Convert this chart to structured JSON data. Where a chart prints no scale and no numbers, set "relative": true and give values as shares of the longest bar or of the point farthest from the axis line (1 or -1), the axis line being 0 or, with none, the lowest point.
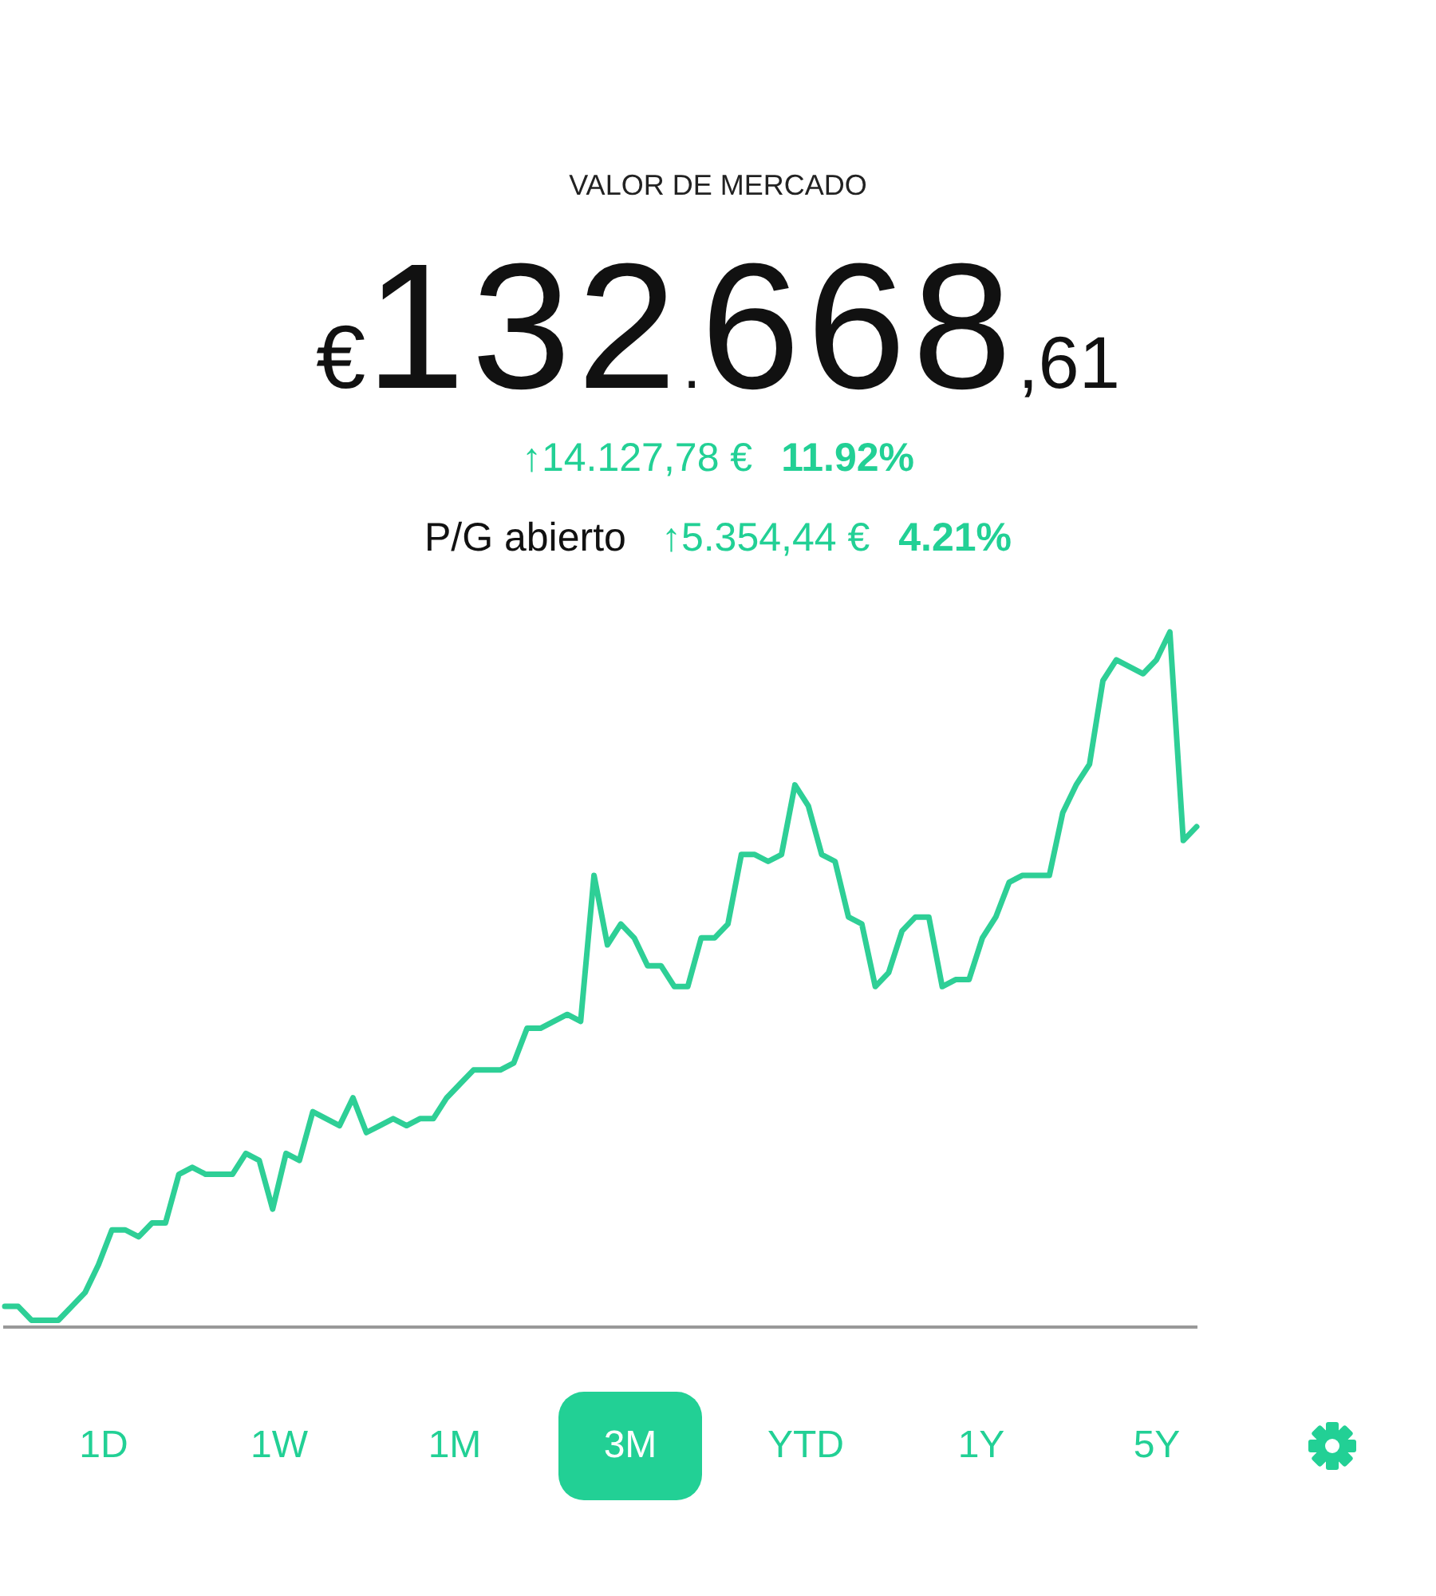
{
  "chart_data": {
    "type": "line",
    "relative": true,
    "title": "VALOR DE MERCADO",
    "subtitle": "€132.668,61",
    "marker": "none",
    "line_style": "solid",
    "annotations": [
      "↑14.127,78 €",
      "11.92%",
      "P/G abierto",
      "↑5.354,44 €",
      "4.21%",
      "1D",
      "1W",
      "1M",
      "3M",
      "YTD",
      "1Y",
      "5Y"
    ],
    "categories": [
      null,
      null,
      null,
      null,
      null,
      null,
      null,
      null,
      null,
      null,
      null,
      null,
      null,
      null,
      null,
      null,
      null,
      null,
      null,
      null,
      null,
      null,
      null,
      null,
      null,
      null,
      null,
      null,
      null,
      null,
      null,
      null,
      null,
      null,
      null,
      null,
      null,
      null,
      null,
      null,
      null,
      null,
      null,
      null,
      null,
      null,
      null,
      null,
      null,
      null,
      null,
      null,
      null,
      null,
      null,
      null,
      null,
      null,
      null,
      null,
      null,
      null,
      null,
      null,
      null,
      null,
      null,
      null,
      null,
      null,
      null,
      null,
      null,
      null,
      null,
      null,
      null,
      null,
      null,
      null,
      null,
      null,
      null,
      null,
      null,
      null,
      null,
      null,
      null,
      null
    ],
    "series": [
      {
        "color": "#2ecf96",
        "values": [
          0.03,
          0.03,
          0.01,
          0.01,
          0.01,
          0.03,
          0.05,
          0.09,
          0.14,
          0.14,
          0.13,
          0.15,
          0.15,
          0.22,
          0.23,
          0.22,
          0.22,
          0.22,
          0.25,
          0.24,
          0.17,
          0.25,
          0.24,
          0.31,
          0.3,
          0.29,
          0.33,
          0.28,
          0.29,
          0.3,
          0.29,
          0.3,
          0.3,
          0.33,
          0.35,
          0.37,
          0.37,
          0.37,
          0.38,
          0.43,
          0.43,
          0.44,
          0.45,
          0.44,
          0.65,
          0.55,
          0.58,
          0.56,
          0.52,
          0.52,
          0.49,
          0.49,
          0.56,
          0.56,
          0.58,
          0.68,
          0.68,
          0.67,
          0.68,
          0.78,
          0.75,
          0.68,
          0.67,
          0.59,
          0.58,
          0.49,
          0.51,
          0.57,
          0.59,
          0.59,
          0.49,
          0.5,
          0.5,
          0.56,
          0.59,
          0.64,
          0.65,
          0.65,
          0.65,
          0.74,
          0.78,
          0.81,
          0.93,
          0.96,
          0.95,
          0.94,
          0.96,
          1,
          0.7,
          0.72
        ]
      }
    ]
  }
}
